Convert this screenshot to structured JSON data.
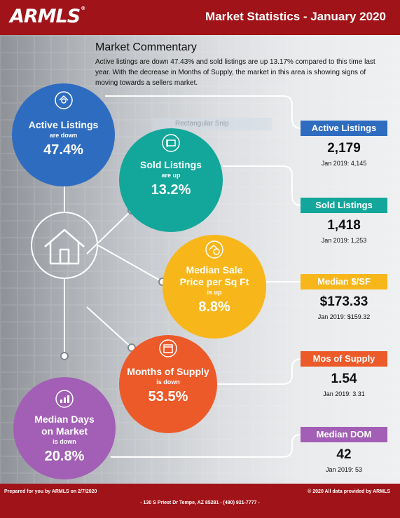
{
  "header": {
    "logo": "ARMLS",
    "logo_mark": "®",
    "title": "Market Statistics - January 2020"
  },
  "commentary": {
    "title": "Market Commentary",
    "text": "Active listings are down 47.43% and sold listings are up 13.17% compared to this time last year. With the decrease in Months of Supply, the market in this area is showing signs of moving towards a sellers market."
  },
  "snip_label": "Rectangular Snip",
  "circles": {
    "active": {
      "label": "Active Listings",
      "direction": "are down",
      "percent": "47.4%",
      "color": "#2e6cc0",
      "icon": "magnifier-house-icon"
    },
    "sold": {
      "label": "Sold Listings",
      "direction": "are up",
      "percent": "13.2%",
      "color": "#12a79a",
      "icon": "house-sign-icon"
    },
    "price": {
      "label_line1": "Median Sale",
      "label_line2": "Price per Sq Ft",
      "direction": "is up",
      "percent": "8.8%",
      "color": "#f7b61a",
      "icon": "dollar-house-icon"
    },
    "supply": {
      "label": "Months of Supply",
      "direction": "is down",
      "percent": "53.5%",
      "color": "#ec5a2a",
      "icon": "calendar-icon"
    },
    "dom": {
      "label_line1": "Median Days",
      "label_line2": "on Market",
      "direction": "is down",
      "percent": "20.8%",
      "color": "#a25fb5",
      "icon": "chart-icon"
    }
  },
  "stats": [
    {
      "label": "Active Listings",
      "value": "2,179",
      "prev": "Jan 2019: 4,145",
      "color": "#2e6cc0"
    },
    {
      "label": "Sold Listings",
      "value": "1,418",
      "prev": "Jan 2019: 1,253",
      "color": "#12a79a"
    },
    {
      "label": "Median $/SF",
      "value": "$173.33",
      "prev": "Jan 2019: $159.32",
      "color": "#f7b61a"
    },
    {
      "label": "Mos of Supply",
      "value": "1.54",
      "prev": "Jan 2019: 3.31",
      "color": "#ec5a2a"
    },
    {
      "label": "Median DOM",
      "value": "42",
      "prev": "Jan 2019: 53",
      "color": "#a25fb5"
    }
  ],
  "footer": {
    "prepared": "Prepared for you by ARMLS on 2/7/2020",
    "copyright": "© 2020 All data provided by ARMLS",
    "address": "- 130 S Priest Dr  Tempe, AZ 85281 - (480) 921-7777 -"
  }
}
